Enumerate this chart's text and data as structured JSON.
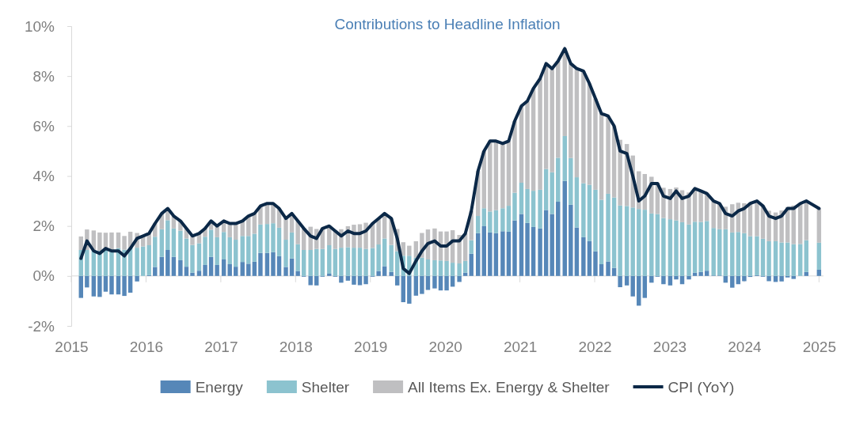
{
  "chart_data": {
    "type": "bar",
    "stacked": true,
    "title": "Contributions to Headline Inflation",
    "x": [
      2015.13,
      2015.21,
      2015.3,
      2015.38,
      2015.46,
      2015.54,
      2015.63,
      2015.71,
      2015.79,
      2015.88,
      2015.96,
      2016.04,
      2016.12,
      2016.21,
      2016.29,
      2016.37,
      2016.46,
      2016.54,
      2016.62,
      2016.71,
      2016.79,
      2016.87,
      2016.95,
      2017.04,
      2017.12,
      2017.2,
      2017.29,
      2017.37,
      2017.45,
      2017.53,
      2017.62,
      2017.7,
      2017.78,
      2017.87,
      2017.95,
      2018.03,
      2018.11,
      2018.2,
      2018.28,
      2018.36,
      2018.45,
      2018.53,
      2018.61,
      2018.7,
      2018.78,
      2018.86,
      2018.94,
      2019.03,
      2019.11,
      2019.19,
      2019.28,
      2019.36,
      2019.44,
      2019.52,
      2019.61,
      2019.69,
      2019.77,
      2019.86,
      2019.94,
      2020.02,
      2020.1,
      2020.19,
      2020.27,
      2020.35,
      2020.44,
      2020.52,
      2020.6,
      2020.68,
      2020.77,
      2020.85,
      2020.93,
      2021.02,
      2021.1,
      2021.18,
      2021.27,
      2021.35,
      2021.43,
      2021.51,
      2021.6,
      2021.68,
      2021.76,
      2021.85,
      2021.93,
      2022.01,
      2022.09,
      2022.18,
      2022.26,
      2022.34,
      2022.43,
      2022.51,
      2022.59,
      2022.67,
      2022.76,
      2022.84,
      2022.92,
      2023.01,
      2023.09,
      2023.17,
      2023.26,
      2023.34,
      2023.42,
      2023.5,
      2023.59,
      2023.67,
      2023.75,
      2023.84,
      2023.92,
      2024.0,
      2024.08,
      2024.17,
      2024.25,
      2024.33,
      2024.42,
      2024.5,
      2024.58,
      2024.66,
      2024.75,
      2024.83,
      2024.91,
      2025.0
    ],
    "xlim": [
      2015,
      2025.06
    ],
    "xticks": [
      2015,
      2016,
      2017,
      2018,
      2019,
      2020,
      2021,
      2022,
      2023,
      2024,
      2025
    ],
    "ylim": [
      -2,
      10
    ],
    "yticks": [
      {
        "value": -2,
        "label": "-2%"
      },
      {
        "value": 0,
        "label": "0%"
      },
      {
        "value": 2,
        "label": "2%"
      },
      {
        "value": 4,
        "label": "4%"
      },
      {
        "value": 6,
        "label": "6%"
      },
      {
        "value": 8,
        "label": "8%"
      },
      {
        "value": 10,
        "label": "10%"
      }
    ],
    "legend": "bottom",
    "series": [
      {
        "name": "Energy",
        "type": "bar",
        "color": "#5687b8",
        "values": [
          -0.88,
          -0.46,
          -0.82,
          -0.84,
          -0.63,
          -0.74,
          -0.74,
          -0.8,
          -0.67,
          -0.22,
          0.0,
          0.03,
          0.36,
          0.76,
          1.04,
          0.76,
          0.63,
          0.37,
          0.13,
          0.21,
          0.44,
          0.76,
          0.44,
          0.66,
          0.47,
          0.37,
          0.56,
          0.49,
          0.57,
          0.92,
          0.92,
          0.95,
          0.79,
          0.36,
          0.7,
          0.2,
          -0.03,
          -0.37,
          -0.38,
          -0.03,
          0.09,
          -0.03,
          -0.27,
          -0.19,
          -0.35,
          -0.37,
          -0.33,
          -0.03,
          0.2,
          0.39,
          0.16,
          -0.38,
          -1.05,
          -1.11,
          -0.79,
          -0.72,
          -0.56,
          -0.5,
          -0.58,
          -0.58,
          -0.43,
          -0.24,
          0.13,
          0.89,
          1.71,
          1.99,
          1.74,
          1.71,
          1.79,
          1.77,
          2.22,
          2.48,
          2.12,
          1.96,
          1.9,
          2.64,
          2.48,
          2.97,
          3.8,
          2.85,
          1.94,
          1.55,
          1.39,
          0.99,
          0.47,
          0.58,
          0.32,
          -0.45,
          -0.38,
          -0.82,
          -1.19,
          -0.88,
          -0.27,
          -0.03,
          -0.33,
          -0.38,
          -0.14,
          -0.33,
          -0.14,
          0.13,
          0.16,
          0.21,
          0.02,
          0.02,
          -0.27,
          -0.47,
          -0.33,
          -0.21,
          -0.04,
          0.03,
          -0.03,
          -0.21,
          -0.24,
          -0.22,
          -0.06,
          -0.12,
          0.0,
          0.16,
          null,
          0.25
        ]
      },
      {
        "name": "Shelter",
        "type": "bar",
        "color": "#8cc3cf",
        "values": [
          1.04,
          1.04,
          1.02,
          1.0,
          1.08,
          1.06,
          1.11,
          1.05,
          1.13,
          1.13,
          1.18,
          1.2,
          1.21,
          1.11,
          1.19,
          1.14,
          1.18,
          1.13,
          1.11,
          1.1,
          1.13,
          1.09,
          1.11,
          1.1,
          1.08,
          1.08,
          1.04,
          1.11,
          1.12,
          1.14,
          1.16,
          1.16,
          1.14,
          1.09,
          1.04,
          1.07,
          1.04,
          1.04,
          1.08,
          1.08,
          1.14,
          1.08,
          1.13,
          1.15,
          1.13,
          1.13,
          1.08,
          1.12,
          1.06,
          1.11,
          1.08,
          0.99,
          0.81,
          0.81,
          0.73,
          0.73,
          0.66,
          0.63,
          0.62,
          0.6,
          0.53,
          0.5,
          0.47,
          0.54,
          0.69,
          0.72,
          0.84,
          0.92,
          0.92,
          1.04,
          1.11,
          1.25,
          1.36,
          1.45,
          1.55,
          1.64,
          1.67,
          1.76,
          1.8,
          1.87,
          2.01,
          2.16,
          2.26,
          2.46,
          2.58,
          2.71,
          2.82,
          2.82,
          2.8,
          2.74,
          2.68,
          2.65,
          2.5,
          2.48,
          2.32,
          2.27,
          2.22,
          2.15,
          2.06,
          2.04,
          2.0,
          1.99,
          1.9,
          1.85,
          1.87,
          1.74,
          1.76,
          1.71,
          1.59,
          1.56,
          1.49,
          1.39,
          1.39,
          1.34,
          1.34,
          1.27,
          1.28,
          1.27,
          null,
          1.08
        ]
      },
      {
        "name": "All Items Ex. Energy & Shelter",
        "type": "bar",
        "color": "#bfbfc1",
        "values": [
          0.54,
          0.82,
          0.8,
          0.74,
          0.65,
          0.68,
          0.63,
          0.55,
          0.64,
          0.59,
          0.42,
          0.47,
          0.53,
          0.63,
          0.47,
          0.5,
          0.39,
          0.4,
          0.36,
          0.39,
          0.33,
          0.35,
          0.45,
          0.44,
          0.55,
          0.65,
          0.6,
          0.8,
          0.81,
          0.74,
          0.82,
          0.79,
          0.77,
          0.85,
          0.76,
          0.93,
          0.89,
          0.93,
          0.8,
          0.85,
          0.77,
          0.75,
          0.74,
          0.84,
          0.92,
          0.94,
          1.05,
          1.01,
          1.04,
          1.0,
          1.06,
          0.89,
          0.54,
          0.4,
          0.66,
          0.99,
          1.2,
          1.27,
          1.16,
          1.18,
          1.3,
          1.14,
          1.1,
          1.17,
          1.8,
          2.29,
          2.82,
          2.77,
          2.59,
          2.59,
          2.87,
          3.07,
          3.52,
          4.09,
          4.45,
          4.22,
          4.15,
          3.87,
          3.5,
          3.78,
          4.35,
          4.49,
          4.05,
          3.65,
          3.45,
          3.11,
          2.86,
          2.63,
          2.48,
          2.08,
          1.51,
          1.43,
          1.47,
          1.25,
          1.21,
          1.21,
          1.32,
          1.28,
          1.28,
          1.33,
          1.24,
          1.1,
          1.08,
          1.03,
          0.9,
          1.13,
          1.17,
          1.2,
          1.35,
          1.41,
          1.34,
          1.22,
          1.15,
          1.28,
          1.42,
          1.55,
          1.62,
          1.57,
          null,
          1.37
        ]
      },
      {
        "name": "CPI (YoY)",
        "type": "line",
        "color": "#0b2847",
        "values": [
          0.7,
          1.4,
          1.0,
          0.9,
          1.1,
          1.0,
          1.0,
          0.8,
          1.1,
          1.5,
          1.6,
          1.7,
          2.1,
          2.5,
          2.7,
          2.4,
          2.2,
          1.9,
          1.6,
          1.7,
          1.9,
          2.2,
          2.0,
          2.2,
          2.1,
          2.1,
          2.2,
          2.4,
          2.5,
          2.8,
          2.9,
          2.9,
          2.7,
          2.3,
          2.5,
          2.2,
          1.9,
          1.6,
          1.5,
          1.9,
          2.0,
          1.8,
          1.6,
          1.8,
          1.7,
          1.7,
          1.8,
          2.1,
          2.3,
          2.5,
          2.3,
          1.5,
          0.3,
          0.1,
          0.6,
          1.0,
          1.3,
          1.4,
          1.2,
          1.2,
          1.4,
          1.4,
          1.7,
          2.6,
          4.2,
          5.0,
          5.4,
          5.4,
          5.3,
          5.4,
          6.2,
          6.8,
          7.0,
          7.5,
          7.9,
          8.5,
          8.3,
          8.6,
          9.1,
          8.5,
          8.3,
          8.2,
          7.7,
          7.1,
          6.5,
          6.4,
          6.0,
          5.0,
          4.9,
          4.0,
          3.0,
          3.2,
          3.7,
          3.7,
          3.2,
          3.1,
          3.4,
          3.1,
          3.2,
          3.5,
          3.4,
          3.3,
          3.0,
          2.9,
          2.5,
          2.4,
          2.6,
          2.7,
          2.9,
          3.0,
          2.8,
          2.4,
          2.3,
          2.4,
          2.7,
          2.7,
          2.9,
          3.0,
          null,
          2.7
        ]
      }
    ]
  }
}
